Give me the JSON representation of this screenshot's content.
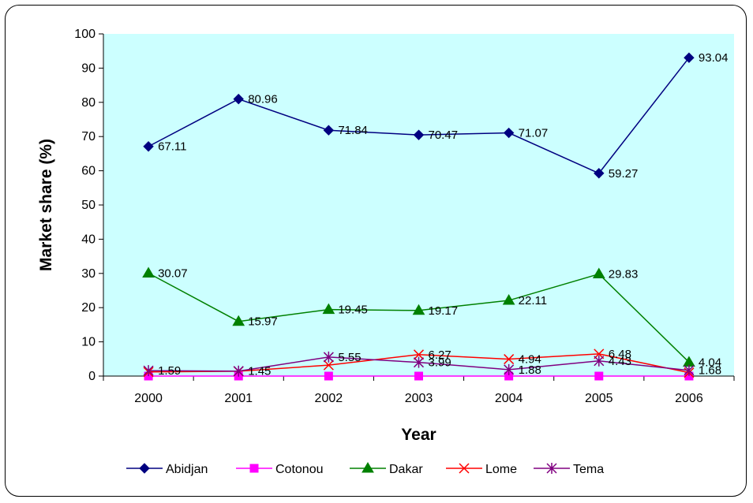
{
  "chart_data": {
    "type": "line",
    "title": "",
    "xlabel": "Year",
    "ylabel": "Market share (%)",
    "ylim": [
      0,
      100
    ],
    "yticks": [
      0,
      10,
      20,
      30,
      40,
      50,
      60,
      70,
      80,
      90,
      100
    ],
    "grid": false,
    "plot_background": "#ccffff",
    "legend_position": "bottom",
    "x": [
      "2000",
      "2001",
      "2002",
      "2003",
      "2004",
      "2005",
      "2006"
    ],
    "series": [
      {
        "name": "Abidjan",
        "color": "#000080",
        "marker": "diamond",
        "values": [
          67.11,
          80.96,
          71.84,
          70.47,
          71.07,
          59.27,
          93.04
        ],
        "labels": [
          "67.11",
          "80.96",
          "71.84",
          "70.47",
          "71.07",
          "59.27",
          "93.04"
        ]
      },
      {
        "name": "Cotonou",
        "color": "#ff00ff",
        "marker": "square",
        "values": [
          0,
          0,
          0,
          0,
          0,
          0,
          0
        ],
        "labels": [
          "",
          "",
          "",
          "",
          "",
          "",
          ""
        ]
      },
      {
        "name": "Dakar",
        "color": "#008000",
        "marker": "triangle",
        "values": [
          30.07,
          15.97,
          19.45,
          19.17,
          22.11,
          29.83,
          4.04
        ],
        "labels": [
          "30.07",
          "15.97",
          "19.45",
          "19.17",
          "22.11",
          "29.83",
          "4.04"
        ]
      },
      {
        "name": "Lome",
        "color": "#ff0000",
        "marker": "x",
        "values": [
          1.2,
          1.4,
          3.2,
          6.27,
          4.94,
          6.48,
          1.0
        ],
        "labels": [
          "",
          "",
          "",
          "6.27",
          "4.94",
          "6.48",
          ""
        ]
      },
      {
        "name": "Tema",
        "color": "#800080",
        "marker": "star",
        "values": [
          1.59,
          1.45,
          5.55,
          3.99,
          1.88,
          4.43,
          1.68
        ],
        "labels": [
          "1.59",
          "1.45",
          "5.55",
          "3.99",
          "1.88",
          "4.43",
          "1.68"
        ]
      }
    ]
  }
}
